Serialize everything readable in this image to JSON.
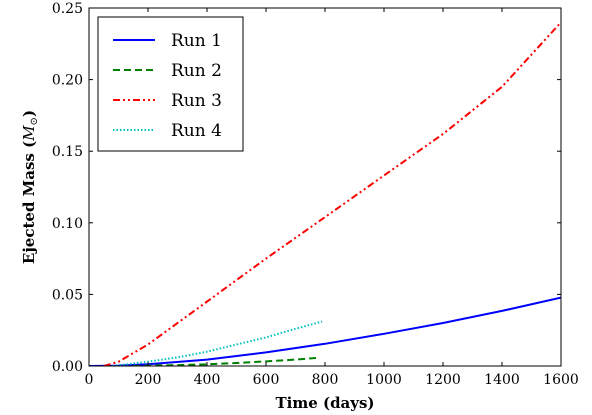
{
  "chart_data": {
    "type": "line",
    "xlabel": "Time (days)",
    "ylabel_main": "Ejected Mass (",
    "ylabel_sym": "M",
    "ylabel_sub": "⊙",
    "ylabel_end": ")",
    "xlim": [
      0,
      1600
    ],
    "ylim": [
      0,
      0.25
    ],
    "xticks": [
      0,
      200,
      400,
      600,
      800,
      1000,
      1200,
      1400,
      1600
    ],
    "xtick_labels": [
      "0",
      "200",
      "400",
      "600",
      "800",
      "1000",
      "1200",
      "1400",
      "1600"
    ],
    "yticks": [
      0,
      0.05,
      0.1,
      0.15,
      0.2,
      0.25
    ],
    "ytick_labels": [
      "0.00",
      "0.05",
      "0.10",
      "0.15",
      "0.20",
      "0.25"
    ],
    "grid": false,
    "legend_position": "top-left",
    "series": [
      {
        "name": "Run 1",
        "color": "#0000ff",
        "style": "solid",
        "x": [
          0,
          100,
          200,
          400,
          600,
          800,
          1000,
          1200,
          1400,
          1600
        ],
        "y": [
          0.0,
          0.0003,
          0.0012,
          0.0045,
          0.0095,
          0.0155,
          0.0225,
          0.03,
          0.0385,
          0.0478
        ]
      },
      {
        "name": "Run 2",
        "color": "#008000",
        "style": "dashed",
        "x": [
          150,
          300,
          400,
          500,
          600,
          700,
          780
        ],
        "y": [
          0.0,
          0.0006,
          0.0012,
          0.0021,
          0.0032,
          0.0045,
          0.0058
        ]
      },
      {
        "name": "Run 3",
        "color": "#ff0000",
        "style": "dashdotdot",
        "x": [
          50,
          100,
          200,
          300,
          400,
          600,
          800,
          1000,
          1200,
          1400,
          1600
        ],
        "y": [
          0.0,
          0.003,
          0.015,
          0.03,
          0.045,
          0.075,
          0.104,
          0.133,
          0.162,
          0.195,
          0.24
        ]
      },
      {
        "name": "Run 4",
        "color": "#00bfbf",
        "style": "dotted",
        "x": [
          80,
          200,
          300,
          400,
          500,
          600,
          700,
          790
        ],
        "y": [
          0.0,
          0.003,
          0.006,
          0.01,
          0.015,
          0.02,
          0.026,
          0.031
        ]
      }
    ]
  }
}
